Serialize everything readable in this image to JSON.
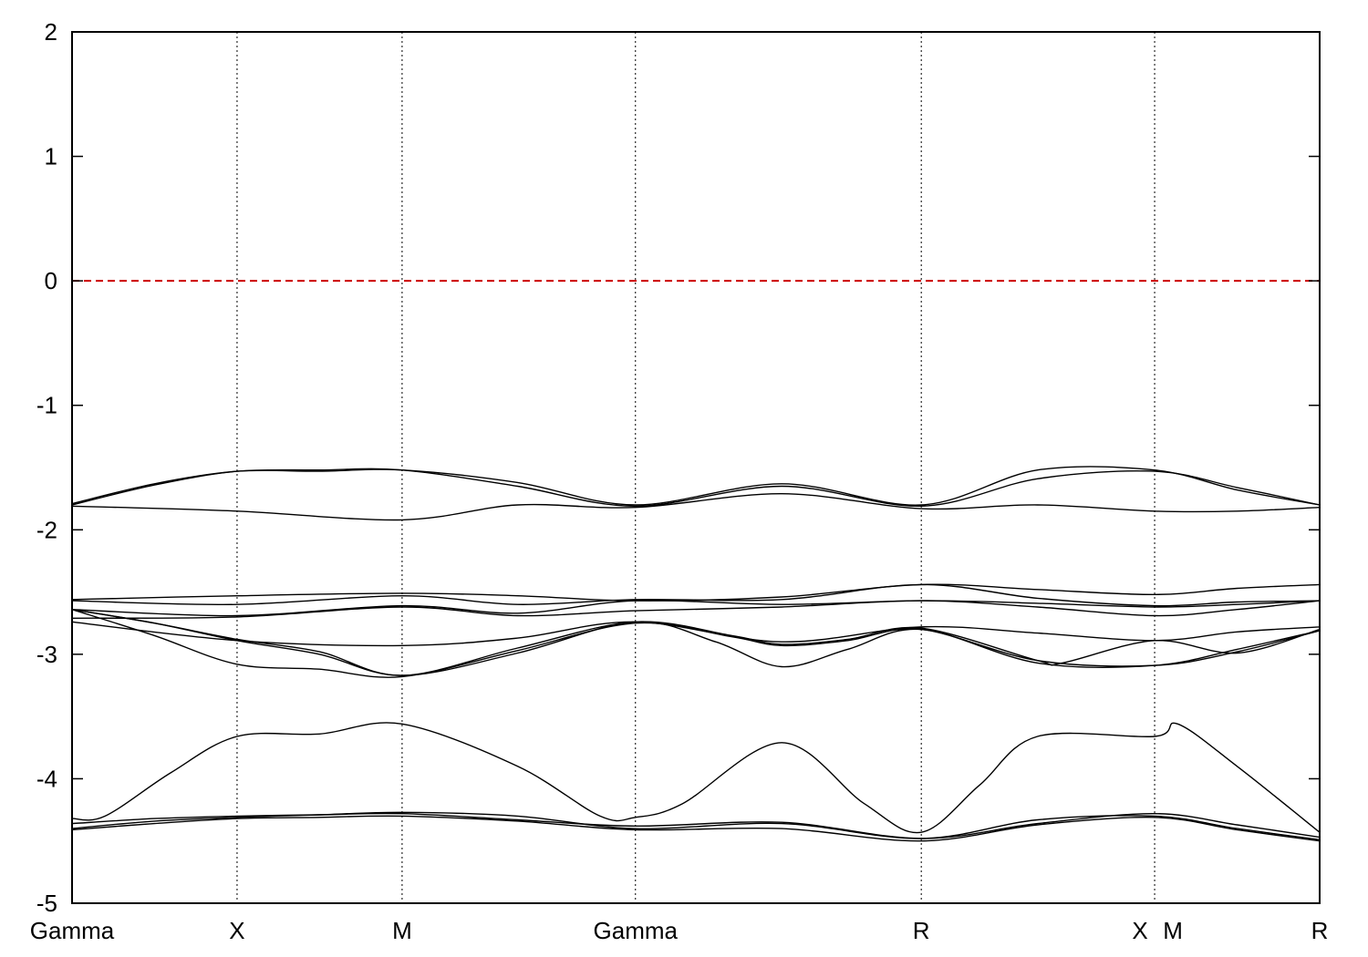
{
  "chart_data": {
    "type": "line",
    "title": "",
    "xlabel": "",
    "ylabel": "",
    "ylim": [
      -5,
      2
    ],
    "yticks": [
      2,
      1,
      0,
      -1,
      -2,
      -3,
      -4,
      -5
    ],
    "high_symmetry_points": [
      {
        "label": "Gamma",
        "k": 0.0
      },
      {
        "label": "X",
        "k": 1.0
      },
      {
        "label": "M",
        "k": 2.0
      },
      {
        "label": "Gamma",
        "k": 3.414
      },
      {
        "label": "R",
        "k": 5.146
      },
      {
        "label": "X",
        "k": 6.56
      },
      {
        "label": "M",
        "k": 6.56
      },
      {
        "label": "R",
        "k": 7.56
      }
    ],
    "x_tick_labels": [
      "Gamma",
      "X",
      "M",
      "Gamma",
      "R",
      "X",
      "M",
      "R"
    ],
    "xlim": [
      0,
      7.56
    ],
    "fermi_level": {
      "value": 0,
      "color": "#cc0000",
      "style": "dashed"
    },
    "grid": "vertical dotted lines at high-symmetry points",
    "legend": "none",
    "band_color": "#000000",
    "bands": [
      {
        "x": [
          0,
          0.5,
          1.0,
          1.5,
          2.0,
          2.7,
          3.414,
          4.3,
          5.146,
          5.85,
          6.56,
          7.06,
          7.56
        ],
        "y": [
          -1.79,
          -1.63,
          -1.53,
          -1.53,
          -1.52,
          -1.62,
          -1.8,
          -1.63,
          -1.8,
          -1.52,
          -1.52,
          -1.68,
          -1.8
        ]
      },
      {
        "x": [
          0,
          0.5,
          1.0,
          1.5,
          2.0,
          2.7,
          3.414,
          4.3,
          5.146,
          5.85,
          6.56,
          7.06,
          7.56
        ],
        "y": [
          -1.8,
          -1.64,
          -1.53,
          -1.52,
          -1.52,
          -1.65,
          -1.81,
          -1.65,
          -1.81,
          -1.59,
          -1.53,
          -1.66,
          -1.8
        ]
      },
      {
        "x": [
          0,
          1.0,
          2.0,
          2.7,
          3.414,
          4.3,
          5.146,
          5.85,
          6.56,
          7.06,
          7.56
        ],
        "y": [
          -1.81,
          -1.85,
          -1.92,
          -1.8,
          -1.82,
          -1.71,
          -1.83,
          -1.8,
          -1.85,
          -1.85,
          -1.82
        ]
      },
      {
        "x": [
          0,
          1.0,
          2.0,
          2.7,
          3.414,
          4.3,
          5.146,
          5.85,
          6.56,
          7.06,
          7.56
        ],
        "y": [
          -2.56,
          -2.53,
          -2.51,
          -2.53,
          -2.57,
          -2.54,
          -2.44,
          -2.48,
          -2.52,
          -2.47,
          -2.44
        ]
      },
      {
        "x": [
          0,
          1.0,
          2.0,
          2.7,
          3.414,
          4.3,
          5.146,
          5.85,
          6.56,
          7.06,
          7.56
        ],
        "y": [
          -2.57,
          -2.6,
          -2.53,
          -2.6,
          -2.56,
          -2.56,
          -2.44,
          -2.55,
          -2.61,
          -2.58,
          -2.57
        ]
      },
      {
        "x": [
          0,
          1.0,
          2.0,
          2.7,
          3.414,
          4.3,
          5.146,
          5.85,
          6.56,
          7.06,
          7.56
        ],
        "y": [
          -2.64,
          -2.69,
          -2.61,
          -2.67,
          -2.57,
          -2.6,
          -2.57,
          -2.59,
          -2.62,
          -2.6,
          -2.57
        ]
      },
      {
        "x": [
          0,
          1.0,
          2.0,
          2.7,
          3.414,
          4.3,
          5.146,
          5.85,
          6.56,
          7.06,
          7.56
        ],
        "y": [
          -2.71,
          -2.7,
          -2.62,
          -2.69,
          -2.65,
          -2.62,
          -2.57,
          -2.62,
          -2.69,
          -2.64,
          -2.57
        ]
      },
      {
        "x": [
          0,
          1.0,
          2.0,
          2.7,
          3.414,
          4.3,
          5.146,
          5.85,
          6.56,
          7.06,
          7.56
        ],
        "y": [
          -2.74,
          -2.89,
          -2.93,
          -2.87,
          -2.74,
          -2.9,
          -2.78,
          -2.83,
          -2.89,
          -2.82,
          -2.78
        ]
      },
      {
        "x": [
          0,
          0.5,
          1.0,
          1.5,
          2.0,
          2.7,
          3.414,
          4.0,
          4.3,
          4.7,
          5.146,
          5.85,
          6.0,
          6.56,
          7.06,
          7.56
        ],
        "y": [
          -2.64,
          -2.75,
          -2.88,
          -2.98,
          -3.17,
          -2.95,
          -2.74,
          -2.85,
          -2.92,
          -2.88,
          -2.79,
          -3.05,
          -3.07,
          -2.89,
          -2.99,
          -2.8
        ]
      },
      {
        "x": [
          0,
          0.5,
          1.0,
          1.5,
          2.0,
          2.7,
          3.414,
          4.0,
          4.3,
          4.7,
          5.146,
          5.85,
          6.56,
          7.06,
          7.56
        ],
        "y": [
          -2.64,
          -2.85,
          -3.08,
          -3.12,
          -3.18,
          -2.97,
          -2.75,
          -2.86,
          -2.93,
          -2.89,
          -2.8,
          -3.05,
          -3.09,
          -2.98,
          -2.81
        ]
      },
      {
        "x": [
          0,
          0.5,
          1.0,
          1.5,
          2.0,
          2.7,
          3.414,
          3.9,
          4.3,
          4.7,
          5.146,
          5.85,
          6.56,
          7.06,
          7.56
        ],
        "y": [
          -2.64,
          -2.75,
          -2.89,
          -3.0,
          -3.17,
          -2.99,
          -2.74,
          -2.9,
          -3.1,
          -2.96,
          -2.8,
          -3.07,
          -3.09,
          -2.96,
          -2.81
        ]
      },
      {
        "x": [
          0,
          0.2,
          0.6,
          1.0,
          1.5,
          2.0,
          2.7,
          3.2,
          3.414,
          3.7,
          4.3,
          4.8,
          5.146,
          5.5,
          5.85,
          6.56,
          6.7,
          7.06,
          7.56
        ],
        "y": [
          -4.32,
          -4.3,
          -3.95,
          -3.66,
          -3.64,
          -3.56,
          -3.9,
          -4.3,
          -4.31,
          -4.2,
          -3.71,
          -4.2,
          -4.43,
          -4.05,
          -3.66,
          -3.66,
          -3.56,
          -3.9,
          -4.43
        ]
      },
      {
        "x": [
          0,
          0.5,
          1.0,
          1.5,
          2.0,
          2.7,
          3.414,
          4.3,
          5.146,
          5.85,
          6.56,
          7.06,
          7.56
        ],
        "y": [
          -4.36,
          -4.32,
          -4.3,
          -4.29,
          -4.28,
          -4.33,
          -4.38,
          -4.35,
          -4.48,
          -4.36,
          -4.28,
          -4.37,
          -4.47
        ]
      },
      {
        "x": [
          0,
          0.5,
          1.0,
          1.5,
          2.0,
          2.7,
          3.414,
          4.3,
          5.146,
          5.85,
          6.56,
          7.06,
          7.56
        ],
        "y": [
          -4.4,
          -4.34,
          -4.31,
          -4.29,
          -4.27,
          -4.3,
          -4.4,
          -4.36,
          -4.48,
          -4.33,
          -4.3,
          -4.4,
          -4.49
        ]
      },
      {
        "x": [
          0,
          0.5,
          1.0,
          1.5,
          2.0,
          2.7,
          3.414,
          4.3,
          5.146,
          5.85,
          6.56,
          7.06,
          7.56
        ],
        "y": [
          -4.41,
          -4.36,
          -4.32,
          -4.31,
          -4.3,
          -4.34,
          -4.41,
          -4.4,
          -4.5,
          -4.37,
          -4.31,
          -4.41,
          -4.5
        ]
      }
    ]
  }
}
